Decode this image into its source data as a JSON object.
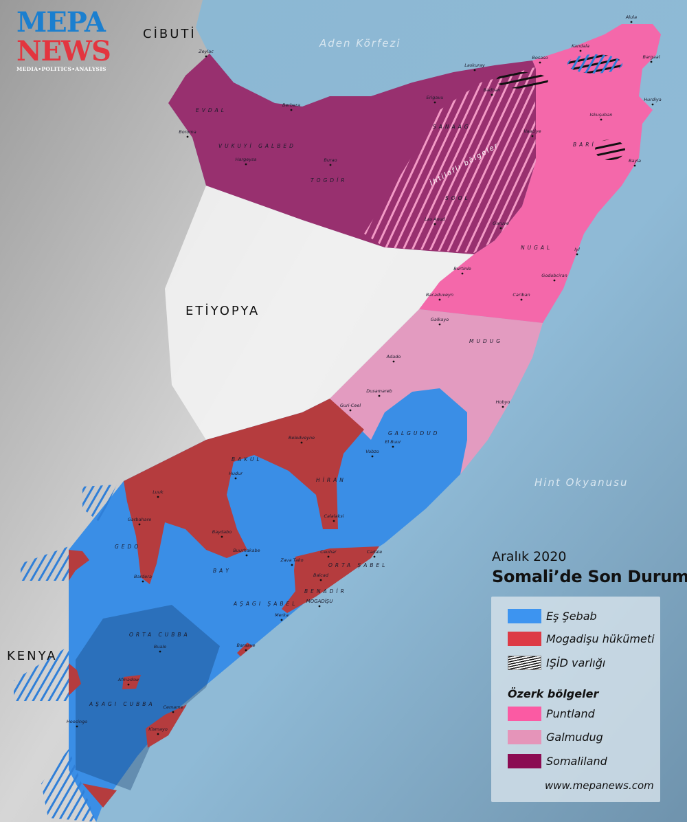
{
  "logo": {
    "line1": "MEPA",
    "line2": "NEWS",
    "tagline": "MEDIA•POLITICS•ANALYSIS"
  },
  "countries": {
    "djibouti": "CİBUTİ",
    "ethiopia": "ETİYOPYA",
    "kenya": "KENYA"
  },
  "water": {
    "gulf": "Aden Körfezi",
    "ocean": "Hint Okyanusu"
  },
  "regions": [
    "EVDAL",
    "VUKUYİ GALBED",
    "TOGDİR",
    "SANAAG",
    "SOOL",
    "BARİ",
    "NUGAL",
    "MUDUG",
    "GALGUDUD",
    "HİRAN",
    "BAKUL",
    "GEDO",
    "BAY",
    "AŞAGI ŞABEL",
    "ORTA ŞABEL",
    "BENADİR",
    "ORTA CUBBA",
    "AŞAGI CUBBA"
  ],
  "disputed_label": "İhtilaflı bölgeler",
  "cities": [
    "Zeylac",
    "Boroma",
    "Hargeysa",
    "Berbera",
    "Burao",
    "Erigavu",
    "Laskuray",
    "Bosaso",
    "Badhan",
    "Las Anud",
    "Garuve",
    "Vaaciye",
    "Kandala",
    "Alula",
    "Bargaal",
    "Hurdiya",
    "Iskuşuban",
    "Bayla",
    "Iyl",
    "Godobciran",
    "Cariban",
    "Burtinle",
    "Bacaduveyn",
    "Galkayo",
    "Adado",
    "Dusamareb",
    "Guri-Ceel",
    "Hobyo",
    "Beledveyne",
    "El Buur",
    "Vobzo",
    "Hudur",
    "Calalaksi",
    "Luuk",
    "Garbahare",
    "Baydabo",
    "Buurhakabe",
    "Bardera",
    "Zava Tako",
    "Ceuhar",
    "Cadale",
    "Balcad",
    "MOGADİŞU",
    "Merka",
    "Buale",
    "Baraave",
    "Afmadow",
    "Cemame",
    "Kismayo",
    "Hoosingo"
  ],
  "legend": {
    "subtitle": "Aralık 2020",
    "title": "Somali’de Son Durum",
    "items": [
      {
        "label": "Eş Şebab",
        "color": "#3d94f0"
      },
      {
        "label": "Mogadişu hükümeti",
        "color": "#dd3a45"
      },
      {
        "label": "IŞİD varlığı",
        "pattern": "black-hatch"
      }
    ],
    "autonomous_heading": "Özerk bölgeler",
    "autonomous": [
      {
        "label": "Puntland",
        "color": "#fb5aa3"
      },
      {
        "label": "Galmudug",
        "color": "#e594b9"
      },
      {
        "label": "Somaliland",
        "color": "#8b0b52"
      }
    ],
    "url": "www.mepanews.com"
  },
  "colors": {
    "shabaab": "#3a8ee6",
    "government": "#b53c3e",
    "puntland": "#f566a9",
    "galmudug": "#e399bf",
    "somaliland": "#9a2d72",
    "ocean": "#84b3d0",
    "land": "#c8c8c8"
  }
}
